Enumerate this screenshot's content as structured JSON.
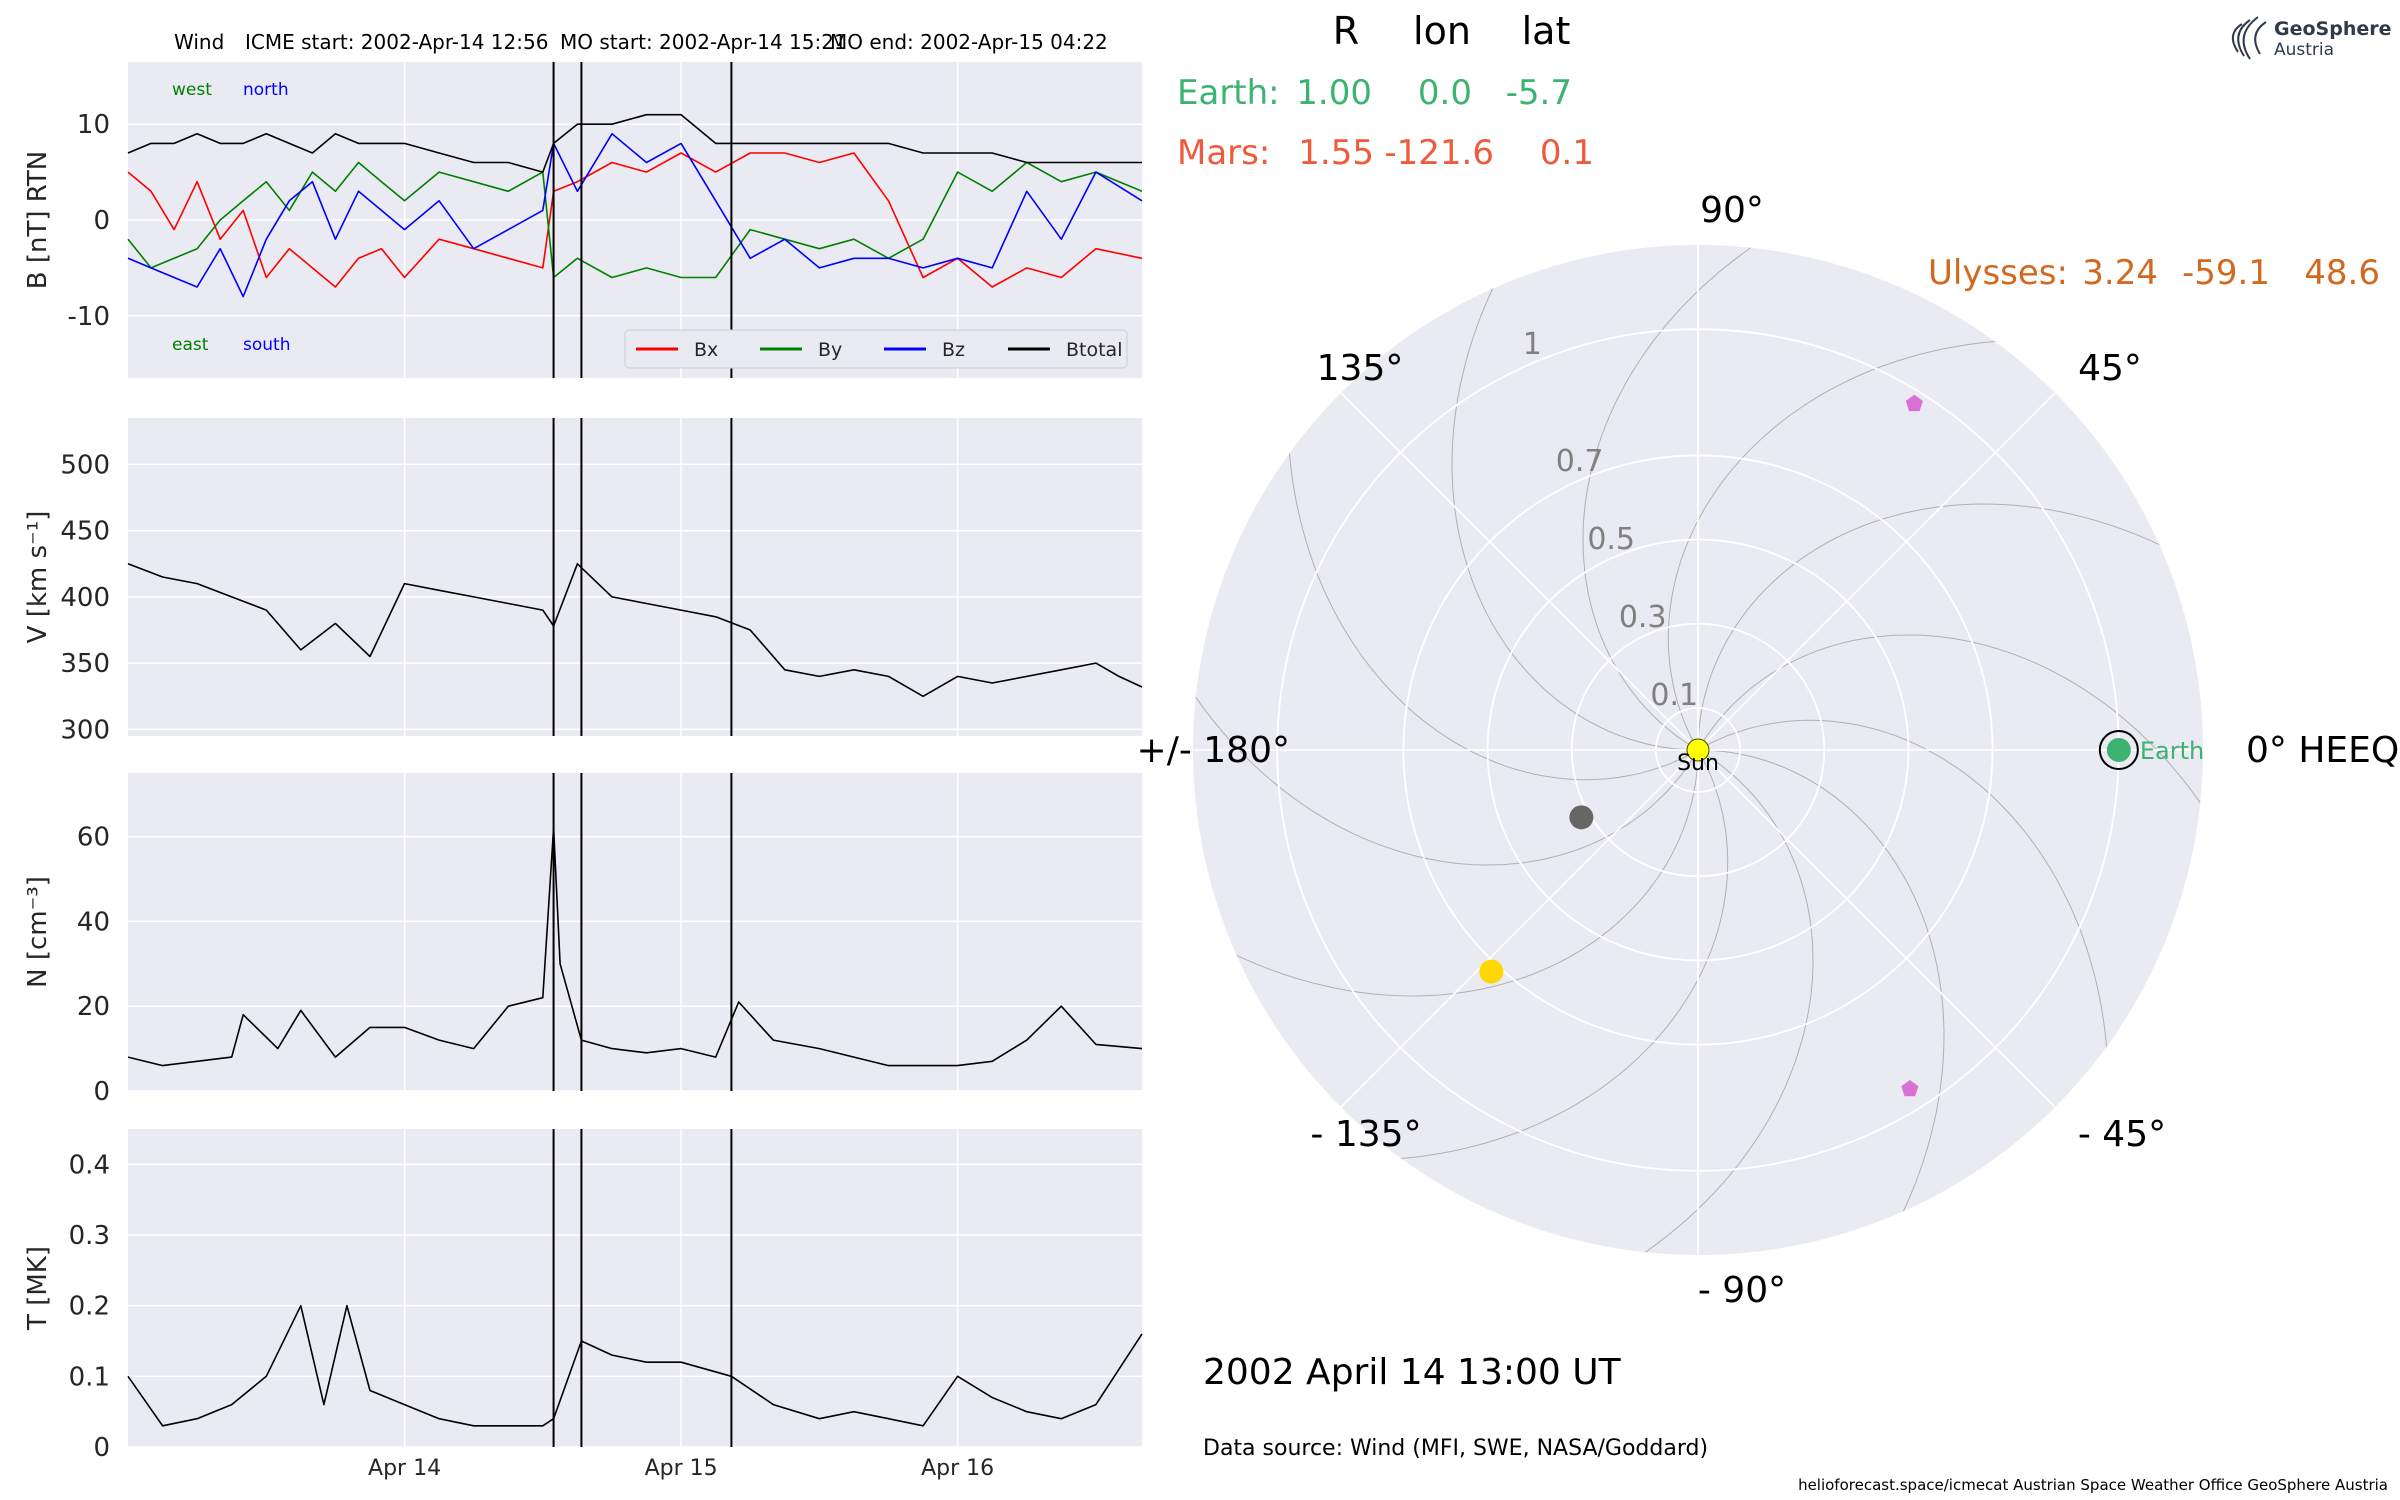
{
  "header": {
    "spacecraft": "Wind",
    "icme_start": "ICME start: 2002-Apr-14 12:56",
    "mo_start": "MO start: 2002-Apr-14 15:21",
    "mo_end": "MO end: 2002-Apr-15 04:22"
  },
  "colors": {
    "panel_bg": "#eaeaf2",
    "grid": "#ffffff",
    "bx": "#ff0000",
    "by": "#008000",
    "bz": "#0000ff",
    "btotal": "#000000",
    "earth": "#3cb371",
    "mars": "#f05a3c",
    "ulysses": "#d2691e",
    "sun": "#ffff00",
    "pentagon": "#da70d6",
    "gray_planet": "#666666",
    "gold_planet": "#ffd700"
  },
  "time_axis": {
    "start": "2002-04-13T00:00",
    "end": "2002-04-16T16:00",
    "tick_labels": [
      "Apr 14",
      "Apr 15",
      "Apr 16"
    ],
    "tick_dates": [
      "2002-04-14T00:00",
      "2002-04-15T00:00",
      "2002-04-16T00:00"
    ],
    "event_lines": [
      "2002-04-14T12:56",
      "2002-04-14T15:21",
      "2002-04-15T04:22"
    ]
  },
  "chart_data": [
    {
      "id": "b",
      "type": "line",
      "ylabel": "B [nT] RTN",
      "ylim": [
        -16.5,
        16.5
      ],
      "yticks": [
        -10,
        0,
        10
      ],
      "annotations": {
        "west": "west",
        "north": "north",
        "east": "east",
        "south": "south"
      },
      "legend": {
        "placement": "bottom-right",
        "labels": [
          "Bx",
          "By",
          "Bz",
          "Btotal"
        ]
      },
      "series": [
        {
          "name": "Bx",
          "key": "bx",
          "x": [
            "2002-04-13T00:00",
            "2002-04-13T02:00",
            "2002-04-13T04:00",
            "2002-04-13T06:00",
            "2002-04-13T08:00",
            "2002-04-13T10:00",
            "2002-04-13T12:00",
            "2002-04-13T14:00",
            "2002-04-13T16:00",
            "2002-04-13T18:00",
            "2002-04-13T20:00",
            "2002-04-13T22:00",
            "2002-04-14T00:00",
            "2002-04-14T03:00",
            "2002-04-14T06:00",
            "2002-04-14T09:00",
            "2002-04-14T12:00",
            "2002-04-14T12:56",
            "2002-04-14T15:00",
            "2002-04-14T18:00",
            "2002-04-14T21:00",
            "2002-04-15T00:00",
            "2002-04-15T03:00",
            "2002-04-15T06:00",
            "2002-04-15T09:00",
            "2002-04-15T12:00",
            "2002-04-15T15:00",
            "2002-04-15T18:00",
            "2002-04-15T21:00",
            "2002-04-16T00:00",
            "2002-04-16T03:00",
            "2002-04-16T06:00",
            "2002-04-16T09:00",
            "2002-04-16T12:00",
            "2002-04-16T16:00"
          ],
          "y": [
            5,
            3,
            -1,
            4,
            -2,
            1,
            -6,
            -3,
            -5,
            -7,
            -4,
            -3,
            -6,
            -2,
            -3,
            -4,
            -5,
            3,
            4,
            6,
            5,
            7,
            5,
            7,
            7,
            6,
            7,
            2,
            -6,
            -4,
            -7,
            -5,
            -6,
            -3,
            -4
          ]
        },
        {
          "name": "By",
          "key": "by",
          "x": [
            "2002-04-13T00:00",
            "2002-04-13T02:00",
            "2002-04-13T04:00",
            "2002-04-13T06:00",
            "2002-04-13T08:00",
            "2002-04-13T10:00",
            "2002-04-13T12:00",
            "2002-04-13T14:00",
            "2002-04-13T16:00",
            "2002-04-13T18:00",
            "2002-04-13T20:00",
            "2002-04-13T22:00",
            "2002-04-14T00:00",
            "2002-04-14T03:00",
            "2002-04-14T06:00",
            "2002-04-14T09:00",
            "2002-04-14T12:00",
            "2002-04-14T12:56",
            "2002-04-14T15:00",
            "2002-04-14T18:00",
            "2002-04-14T21:00",
            "2002-04-15T00:00",
            "2002-04-15T03:00",
            "2002-04-15T06:00",
            "2002-04-15T09:00",
            "2002-04-15T12:00",
            "2002-04-15T15:00",
            "2002-04-15T18:00",
            "2002-04-15T21:00",
            "2002-04-16T00:00",
            "2002-04-16T03:00",
            "2002-04-16T06:00",
            "2002-04-16T09:00",
            "2002-04-16T12:00",
            "2002-04-16T16:00"
          ],
          "y": [
            -2,
            -5,
            -4,
            -3,
            0,
            2,
            4,
            1,
            5,
            3,
            6,
            4,
            2,
            5,
            4,
            3,
            5,
            -6,
            -4,
            -6,
            -5,
            -6,
            -6,
            -1,
            -2,
            -3,
            -2,
            -4,
            -2,
            5,
            3,
            6,
            4,
            5,
            3
          ]
        },
        {
          "name": "Bz",
          "key": "bz",
          "x": [
            "2002-04-13T00:00",
            "2002-04-13T02:00",
            "2002-04-13T04:00",
            "2002-04-13T06:00",
            "2002-04-13T08:00",
            "2002-04-13T10:00",
            "2002-04-13T12:00",
            "2002-04-13T14:00",
            "2002-04-13T16:00",
            "2002-04-13T18:00",
            "2002-04-13T20:00",
            "2002-04-13T22:00",
            "2002-04-14T00:00",
            "2002-04-14T03:00",
            "2002-04-14T06:00",
            "2002-04-14T09:00",
            "2002-04-14T12:00",
            "2002-04-14T12:56",
            "2002-04-14T15:00",
            "2002-04-14T18:00",
            "2002-04-14T21:00",
            "2002-04-15T00:00",
            "2002-04-15T03:00",
            "2002-04-15T06:00",
            "2002-04-15T09:00",
            "2002-04-15T12:00",
            "2002-04-15T15:00",
            "2002-04-15T18:00",
            "2002-04-15T21:00",
            "2002-04-16T00:00",
            "2002-04-16T03:00",
            "2002-04-16T06:00",
            "2002-04-16T09:00",
            "2002-04-16T12:00",
            "2002-04-16T16:00"
          ],
          "y": [
            -4,
            -5,
            -6,
            -7,
            -3,
            -8,
            -2,
            2,
            4,
            -2,
            3,
            1,
            -1,
            2,
            -3,
            -1,
            1,
            8,
            3,
            9,
            6,
            8,
            2,
            -4,
            -2,
            -5,
            -4,
            -4,
            -5,
            -4,
            -5,
            3,
            -2,
            5,
            2
          ]
        },
        {
          "name": "Btotal",
          "key": "btotal",
          "x": [
            "2002-04-13T00:00",
            "2002-04-13T02:00",
            "2002-04-13T04:00",
            "2002-04-13T06:00",
            "2002-04-13T08:00",
            "2002-04-13T10:00",
            "2002-04-13T12:00",
            "2002-04-13T14:00",
            "2002-04-13T16:00",
            "2002-04-13T18:00",
            "2002-04-13T20:00",
            "2002-04-13T22:00",
            "2002-04-14T00:00",
            "2002-04-14T03:00",
            "2002-04-14T06:00",
            "2002-04-14T09:00",
            "2002-04-14T12:00",
            "2002-04-14T12:56",
            "2002-04-14T15:00",
            "2002-04-14T18:00",
            "2002-04-14T21:00",
            "2002-04-15T00:00",
            "2002-04-15T03:00",
            "2002-04-15T06:00",
            "2002-04-15T09:00",
            "2002-04-15T12:00",
            "2002-04-15T15:00",
            "2002-04-15T18:00",
            "2002-04-15T21:00",
            "2002-04-16T00:00",
            "2002-04-16T03:00",
            "2002-04-16T06:00",
            "2002-04-16T09:00",
            "2002-04-16T12:00",
            "2002-04-16T16:00"
          ],
          "y": [
            7,
            8,
            8,
            9,
            8,
            8,
            9,
            8,
            7,
            9,
            8,
            8,
            8,
            7,
            6,
            6,
            5,
            8,
            10,
            10,
            11,
            11,
            8,
            8,
            8,
            8,
            8,
            8,
            7,
            7,
            7,
            6,
            6,
            6,
            6
          ]
        }
      ]
    },
    {
      "id": "v",
      "type": "line",
      "ylabel": "V [km s⁻¹]",
      "ylim": [
        295,
        535
      ],
      "yticks": [
        300,
        350,
        400,
        450,
        500
      ],
      "series": [
        {
          "name": "V",
          "key": "v",
          "x": [
            "2002-04-13T00:00",
            "2002-04-13T03:00",
            "2002-04-13T06:00",
            "2002-04-13T09:00",
            "2002-04-13T12:00",
            "2002-04-13T15:00",
            "2002-04-13T18:00",
            "2002-04-13T21:00",
            "2002-04-14T00:00",
            "2002-04-14T03:00",
            "2002-04-14T06:00",
            "2002-04-14T09:00",
            "2002-04-14T12:00",
            "2002-04-14T12:56",
            "2002-04-14T15:00",
            "2002-04-14T18:00",
            "2002-04-14T21:00",
            "2002-04-15T00:00",
            "2002-04-15T03:00",
            "2002-04-15T06:00",
            "2002-04-15T09:00",
            "2002-04-15T12:00",
            "2002-04-15T15:00",
            "2002-04-15T18:00",
            "2002-04-15T21:00",
            "2002-04-16T00:00",
            "2002-04-16T03:00",
            "2002-04-16T06:00",
            "2002-04-16T09:00",
            "2002-04-16T12:00",
            "2002-04-16T14:00",
            "2002-04-16T16:00"
          ],
          "y": [
            425,
            415,
            410,
            400,
            390,
            360,
            380,
            355,
            410,
            405,
            400,
            395,
            390,
            378,
            425,
            400,
            395,
            390,
            385,
            375,
            345,
            340,
            345,
            340,
            325,
            340,
            335,
            340,
            345,
            350,
            340,
            332
          ]
        }
      ]
    },
    {
      "id": "n",
      "type": "line",
      "ylabel": "N [cm⁻³]",
      "ylim": [
        0,
        75
      ],
      "yticks": [
        0,
        20,
        40,
        60
      ],
      "series": [
        {
          "name": "N",
          "key": "n",
          "x": [
            "2002-04-13T00:00",
            "2002-04-13T03:00",
            "2002-04-13T06:00",
            "2002-04-13T09:00",
            "2002-04-13T10:00",
            "2002-04-13T13:00",
            "2002-04-13T15:00",
            "2002-04-13T18:00",
            "2002-04-13T21:00",
            "2002-04-14T00:00",
            "2002-04-14T03:00",
            "2002-04-14T06:00",
            "2002-04-14T09:00",
            "2002-04-14T12:00",
            "2002-04-14T12:56",
            "2002-04-14T13:30",
            "2002-04-14T15:21",
            "2002-04-14T18:00",
            "2002-04-14T21:00",
            "2002-04-15T00:00",
            "2002-04-15T03:00",
            "2002-04-15T05:00",
            "2002-04-15T08:00",
            "2002-04-15T12:00",
            "2002-04-15T15:00",
            "2002-04-15T18:00",
            "2002-04-15T21:00",
            "2002-04-16T00:00",
            "2002-04-16T03:00",
            "2002-04-16T06:00",
            "2002-04-16T09:00",
            "2002-04-16T12:00",
            "2002-04-16T16:00"
          ],
          "y": [
            8,
            6,
            7,
            8,
            18,
            10,
            19,
            8,
            15,
            15,
            12,
            10,
            20,
            22,
            62,
            30,
            12,
            10,
            9,
            10,
            8,
            21,
            12,
            10,
            8,
            6,
            6,
            6,
            7,
            12,
            20,
            11,
            10
          ]
        }
      ]
    },
    {
      "id": "t",
      "type": "line",
      "ylabel": "T [MK]",
      "ylim": [
        0,
        0.45
      ],
      "yticks": [
        0.0,
        0.1,
        0.2,
        0.3,
        0.4
      ],
      "series": [
        {
          "name": "T",
          "key": "t",
          "x": [
            "2002-04-13T00:00",
            "2002-04-13T03:00",
            "2002-04-13T06:00",
            "2002-04-13T09:00",
            "2002-04-13T12:00",
            "2002-04-13T15:00",
            "2002-04-13T17:00",
            "2002-04-13T19:00",
            "2002-04-13T21:00",
            "2002-04-14T00:00",
            "2002-04-14T03:00",
            "2002-04-14T06:00",
            "2002-04-14T09:00",
            "2002-04-14T12:00",
            "2002-04-14T12:56",
            "2002-04-14T15:21",
            "2002-04-14T18:00",
            "2002-04-14T21:00",
            "2002-04-15T00:00",
            "2002-04-15T04:22",
            "2002-04-15T08:00",
            "2002-04-15T12:00",
            "2002-04-15T15:00",
            "2002-04-15T18:00",
            "2002-04-15T21:00",
            "2002-04-16T00:00",
            "2002-04-16T03:00",
            "2002-04-16T06:00",
            "2002-04-16T09:00",
            "2002-04-16T12:00",
            "2002-04-16T16:00"
          ],
          "y": [
            0.1,
            0.03,
            0.04,
            0.06,
            0.1,
            0.2,
            0.06,
            0.2,
            0.08,
            0.06,
            0.04,
            0.03,
            0.03,
            0.03,
            0.04,
            0.15,
            0.13,
            0.12,
            0.12,
            0.1,
            0.06,
            0.04,
            0.05,
            0.04,
            0.03,
            0.1,
            0.07,
            0.05,
            0.04,
            0.06,
            0.16
          ]
        }
      ]
    },
    {
      "id": "orbit",
      "type": "scatter",
      "description_units": "polar: radius in AU, angle in degrees HEEQ longitude",
      "rticks": [
        0.1,
        0.3,
        0.5,
        0.7,
        1.0
      ],
      "rmax": 1.2,
      "angle_labels": {
        "0": "0° HEEQ",
        "45": "45°",
        "90": "90°",
        "135": "135°",
        "180": "+/- 180°",
        "-135": "- 135°",
        "-90": "- 90°",
        "-45": "- 45°"
      },
      "sun_label": "Sun",
      "earth_label": "Earth",
      "points": [
        {
          "name": "Earth",
          "r": 1.0,
          "lon": 0.0,
          "color_key": "earth",
          "shape": "circle"
        },
        {
          "name": "gray-planet",
          "r": 0.32,
          "lon": -150,
          "color_key": "gray_planet",
          "shape": "circle"
        },
        {
          "name": "gold-planet",
          "r": 0.72,
          "lon": -133,
          "color_key": "gold_planet",
          "shape": "circle"
        },
        {
          "name": "pentagon-1",
          "r": 0.97,
          "lon": 58,
          "color_key": "pentagon",
          "shape": "pentagon"
        },
        {
          "name": "pentagon-2",
          "r": 0.95,
          "lon": -58,
          "color_key": "pentagon",
          "shape": "pentagon"
        }
      ]
    }
  ],
  "position_table": {
    "headers": [
      "R",
      "lon",
      "lat"
    ],
    "rows": [
      {
        "label": "Earth:",
        "r": "1.00",
        "lon": "0.0",
        "lat": "-5.7",
        "color_key": "earth"
      },
      {
        "label": "Mars:",
        "r": "1.55",
        "lon": "-121.6",
        "lat": "0.1",
        "color_key": "mars"
      },
      {
        "label": "Ulysses:",
        "r": "3.24",
        "lon": "-59.1",
        "lat": "48.6",
        "color_key": "ulysses"
      }
    ]
  },
  "datetime_label": "2002 April 14  13:00 UT",
  "data_source": "Data source: Wind (MFI, SWE, NASA/Goddard)",
  "footer": "helioforecast.space/icmecat   Austrian Space Weather Office   GeoSphere Austria",
  "logo": {
    "line1": "GeoSphere",
    "line2": "Austria"
  }
}
